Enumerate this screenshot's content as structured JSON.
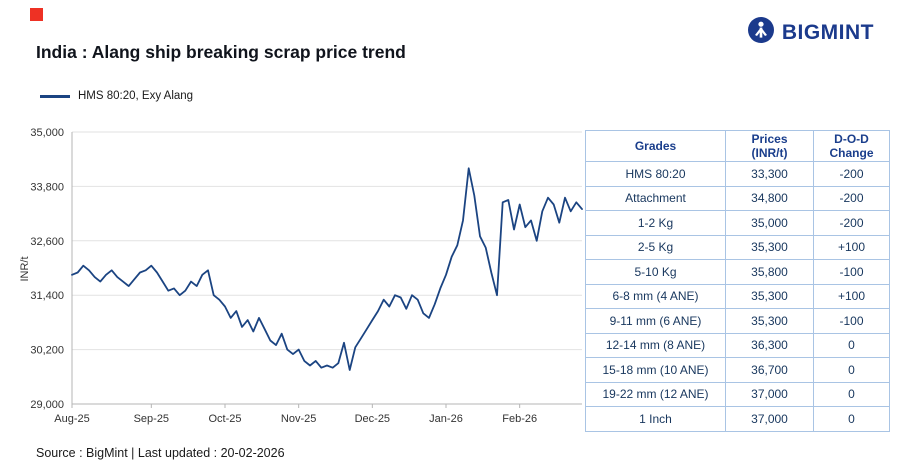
{
  "brand": {
    "logo_text": "BIGMINT"
  },
  "page": {
    "title": "India : Alang ship breaking scrap price trend",
    "footer": "Source : BigMint | Last updated : 20-02-2026"
  },
  "legend": {
    "label": "HMS 80:20, Exy Alang"
  },
  "chart_data": {
    "type": "line",
    "title": "India : Alang ship breaking scrap price trend",
    "series_name": "HMS 80:20, Exy Alang",
    "xlabel": "",
    "ylabel": "INR/t",
    "ylim": [
      29000,
      35000
    ],
    "grid": "horizontal",
    "legend_position": "top-left",
    "yticks": [
      {
        "v": 35000,
        "label": "35,000"
      },
      {
        "v": 33800,
        "label": "33,800"
      },
      {
        "v": 32600,
        "label": "32,600"
      },
      {
        "v": 31400,
        "label": "31,400"
      },
      {
        "v": 30200,
        "label": "30,200"
      },
      {
        "v": 29000,
        "label": "29,000"
      }
    ],
    "xticks": [
      {
        "i": 0,
        "label": "Aug-25"
      },
      {
        "i": 14,
        "label": "Sep-25"
      },
      {
        "i": 27,
        "label": "Oct-25"
      },
      {
        "i": 40,
        "label": "Nov-25"
      },
      {
        "i": 53,
        "label": "Dec-25"
      },
      {
        "i": 66,
        "label": "Jan-26"
      },
      {
        "i": 79,
        "label": "Feb-26"
      }
    ],
    "values": [
      31850,
      31900,
      32050,
      31950,
      31800,
      31700,
      31850,
      31950,
      31800,
      31700,
      31600,
      31750,
      31900,
      31950,
      32050,
      31900,
      31700,
      31500,
      31550,
      31400,
      31500,
      31700,
      31600,
      31850,
      31950,
      31400,
      31300,
      31150,
      30900,
      31050,
      30700,
      30850,
      30600,
      30900,
      30650,
      30400,
      30300,
      30550,
      30200,
      30100,
      30200,
      29950,
      29850,
      29950,
      29800,
      29850,
      29800,
      29900,
      30350,
      29750,
      30250,
      30450,
      30650,
      30850,
      31050,
      31300,
      31150,
      31400,
      31350,
      31100,
      31400,
      31300,
      31000,
      30900,
      31200,
      31550,
      31850,
      32250,
      32500,
      33050,
      34200,
      33600,
      32700,
      32450,
      31900,
      31400,
      33450,
      33500,
      32850,
      33400,
      32900,
      33050,
      32600,
      33250,
      33550,
      33400,
      33000,
      33550,
      33250,
      33450,
      33300
    ]
  },
  "table": {
    "header": [
      "Grades",
      "Prices (INR/t)",
      "D-O-D Change"
    ],
    "rows": [
      {
        "grade": "HMS 80:20",
        "price": "33,300",
        "change": "-200"
      },
      {
        "grade": "Attachment",
        "price": "34,800",
        "change": "-200"
      },
      {
        "grade": "1-2 Kg",
        "price": "35,000",
        "change": "-200"
      },
      {
        "grade": "2-5 Kg",
        "price": "35,300",
        "change": "+100"
      },
      {
        "grade": "5-10 Kg",
        "price": "35,800",
        "change": "-100"
      },
      {
        "grade": "6-8 mm (4 ANE)",
        "price": "35,300",
        "change": "+100"
      },
      {
        "grade": "9-11 mm (6 ANE)",
        "price": "35,300",
        "change": "-100"
      },
      {
        "grade": "12-14 mm (8 ANE)",
        "price": "36,300",
        "change": "0"
      },
      {
        "grade": "15-18 mm (10 ANE)",
        "price": "36,700",
        "change": "0"
      },
      {
        "grade": "19-22 mm (12 ANE)",
        "price": "37,000",
        "change": "0"
      },
      {
        "grade": "1 Inch",
        "price": "37,000",
        "change": "0"
      }
    ]
  },
  "colors": {
    "line": "#1b4482",
    "accent_red": "#ee3124",
    "pos": "#00a651",
    "neg": "#e8112d",
    "grid": "#e2e2e2",
    "axis": "#b5b5b5",
    "tick_text": "#333333",
    "table_border": "#a9c4e4",
    "header_text": "#1a3e8c",
    "logo_blue": "#1b3a8c"
  }
}
